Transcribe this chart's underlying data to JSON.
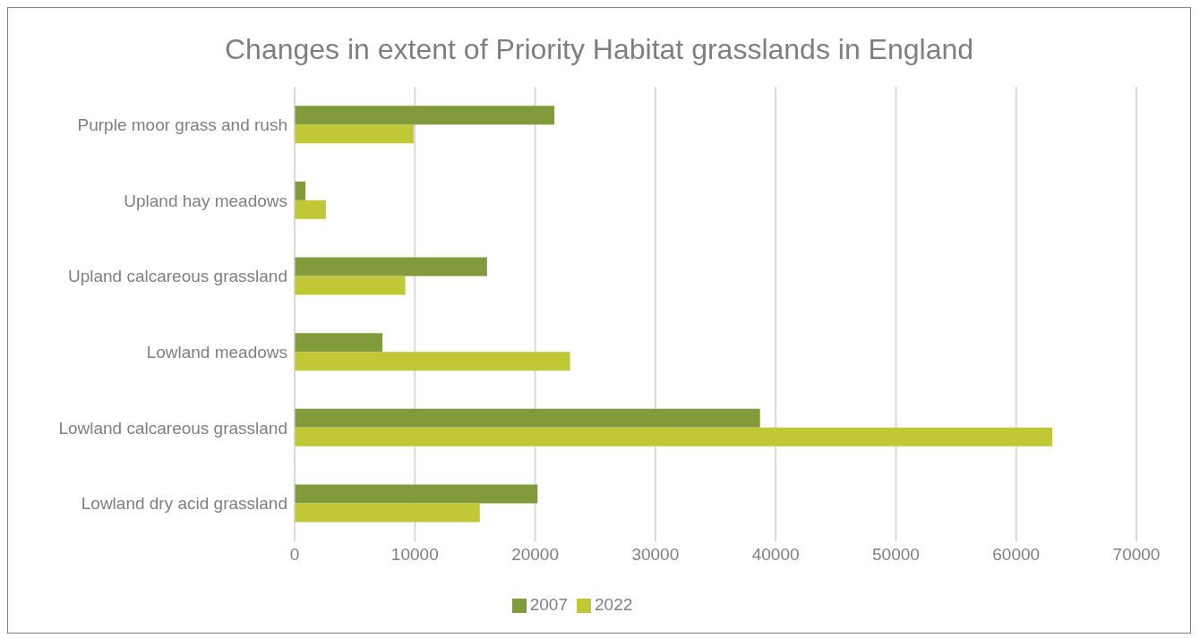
{
  "chart_data": {
    "type": "bar",
    "orientation": "horizontal",
    "title": "Changes in extent of Priority Habitat grasslands in England",
    "categories": [
      "Purple moor grass and rush",
      "Upland hay meadows",
      "Upland calcareous grassland",
      "Lowland meadows",
      "Lowland calcareous grassland",
      "Lowland dry acid grassland"
    ],
    "series": [
      {
        "name": "2007",
        "color": "#819b3c",
        "values": [
          21600,
          900,
          16000,
          7300,
          38700,
          20200
        ]
      },
      {
        "name": "2022",
        "color": "#c0c935",
        "values": [
          9900,
          2600,
          9200,
          22900,
          63000,
          15400
        ]
      }
    ],
    "xlim": [
      0,
      70000
    ],
    "xticks": [
      0,
      10000,
      20000,
      30000,
      40000,
      50000,
      60000,
      70000
    ],
    "grid": "x",
    "legend": "bottom"
  }
}
